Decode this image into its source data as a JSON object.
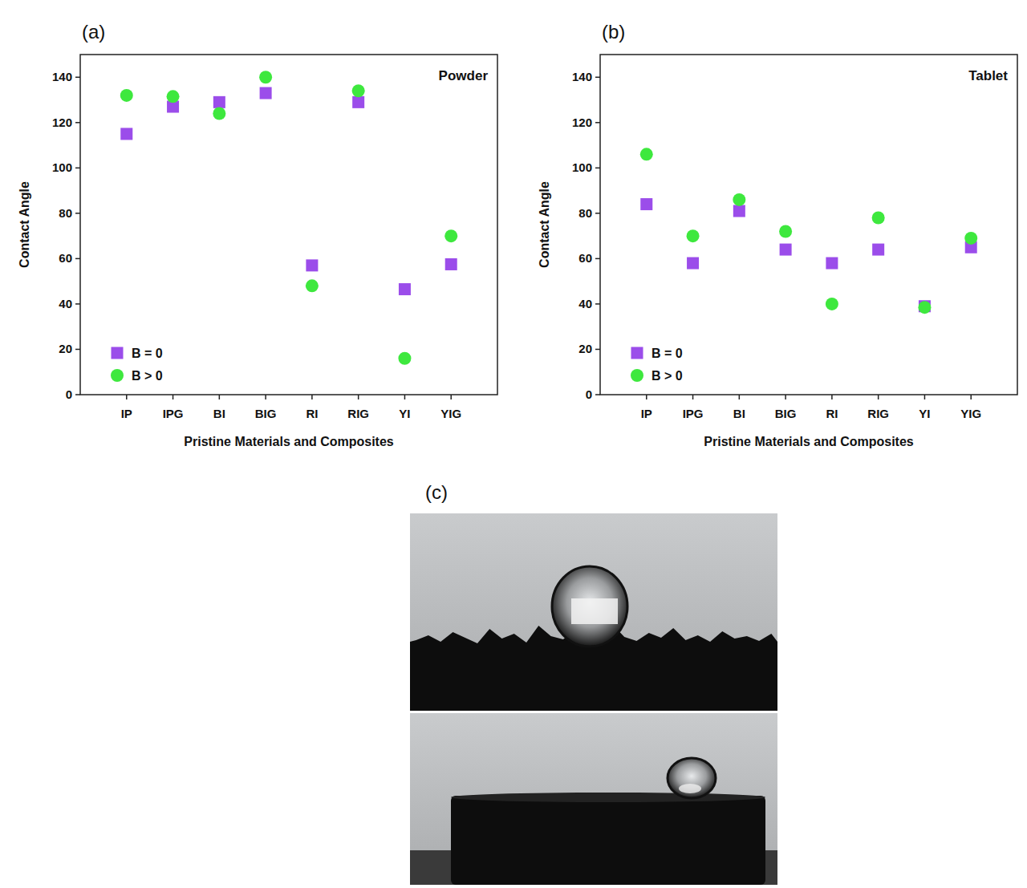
{
  "chart_data": [
    {
      "type": "scatter",
      "label": "(a)",
      "title": "Powder",
      "x_label": "Pristine Materials and Composites",
      "y_label": "Contact Angle",
      "categories": [
        "IP",
        "IPG",
        "BI",
        "BIG",
        "RI",
        "RIG",
        "YI",
        "YIG"
      ],
      "series": [
        {
          "name": "B = 0",
          "color": "#9b4dea",
          "marker": "square",
          "values": [
            115,
            127,
            129,
            133,
            57,
            129,
            46.5,
            57.5
          ]
        },
        {
          "name": "B > 0",
          "color": "#3ee83e",
          "marker": "circle",
          "values": [
            132,
            131.5,
            124,
            140,
            48,
            134,
            16,
            70
          ]
        }
      ],
      "ylim": [
        0,
        150
      ],
      "yticks": [
        0,
        20,
        40,
        60,
        80,
        100,
        120,
        140
      ],
      "legend": "lower left",
      "grid": false
    },
    {
      "type": "scatter",
      "label": "(b)",
      "title": "Tablet",
      "x_label": "Pristine Materials and Composites",
      "y_label": "Contact Angle",
      "categories": [
        "IP",
        "IPG",
        "BI",
        "BIG",
        "RI",
        "RIG",
        "YI",
        "YIG"
      ],
      "series": [
        {
          "name": "B = 0",
          "color": "#9b4dea",
          "marker": "square",
          "values": [
            84,
            58,
            81,
            64,
            58,
            64,
            39,
            65
          ]
        },
        {
          "name": "B > 0",
          "color": "#3ee83e",
          "marker": "circle",
          "values": [
            106,
            70,
            86,
            72,
            40,
            78,
            38.5,
            69
          ]
        }
      ],
      "ylim": [
        0,
        150
      ],
      "yticks": [
        0,
        20,
        40,
        60,
        80,
        100,
        120,
        140
      ],
      "legend": "lower left",
      "grid": false
    }
  ],
  "image_panel": {
    "label": "(c)"
  }
}
